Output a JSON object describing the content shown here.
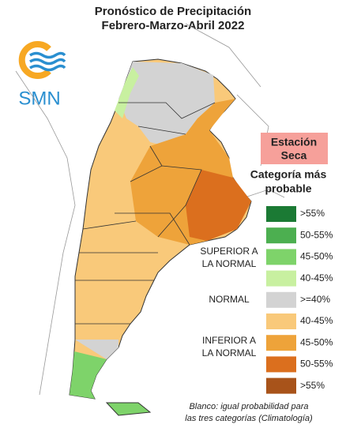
{
  "title": [
    "Pronóstico de Precipitación",
    "Febrero-Marzo-Abril 2022"
  ],
  "logo": "SMN",
  "badge": [
    "Estación",
    "Seca"
  ],
  "legend": {
    "title": [
      "Categoría más",
      "probable"
    ],
    "groups": [
      [
        "SUPERIOR A",
        "LA NORMAL"
      ],
      [
        "NORMAL"
      ],
      [
        "INFERIOR A",
        "LA NORMAL"
      ]
    ],
    "items": [
      {
        "label": ">55%",
        "color": "#1b7a34"
      },
      {
        "label": "50-55%",
        "color": "#4caf50"
      },
      {
        "label": "45-50%",
        "color": "#7ed36a"
      },
      {
        "label": "40-45%",
        "color": "#c8f0a0"
      },
      {
        "label": ">=40%",
        "color": "#d3d3d3"
      },
      {
        "label": "40-45%",
        "color": "#f9c97a"
      },
      {
        "label": "45-50%",
        "color": "#eea33a"
      },
      {
        "label": "50-55%",
        "color": "#db6f1e"
      },
      {
        "label": ">55%",
        "color": "#a8531a"
      }
    ]
  },
  "footnote": [
    "Blanco: igual probabilidad para",
    "las tres categorías (Climatología)"
  ]
}
